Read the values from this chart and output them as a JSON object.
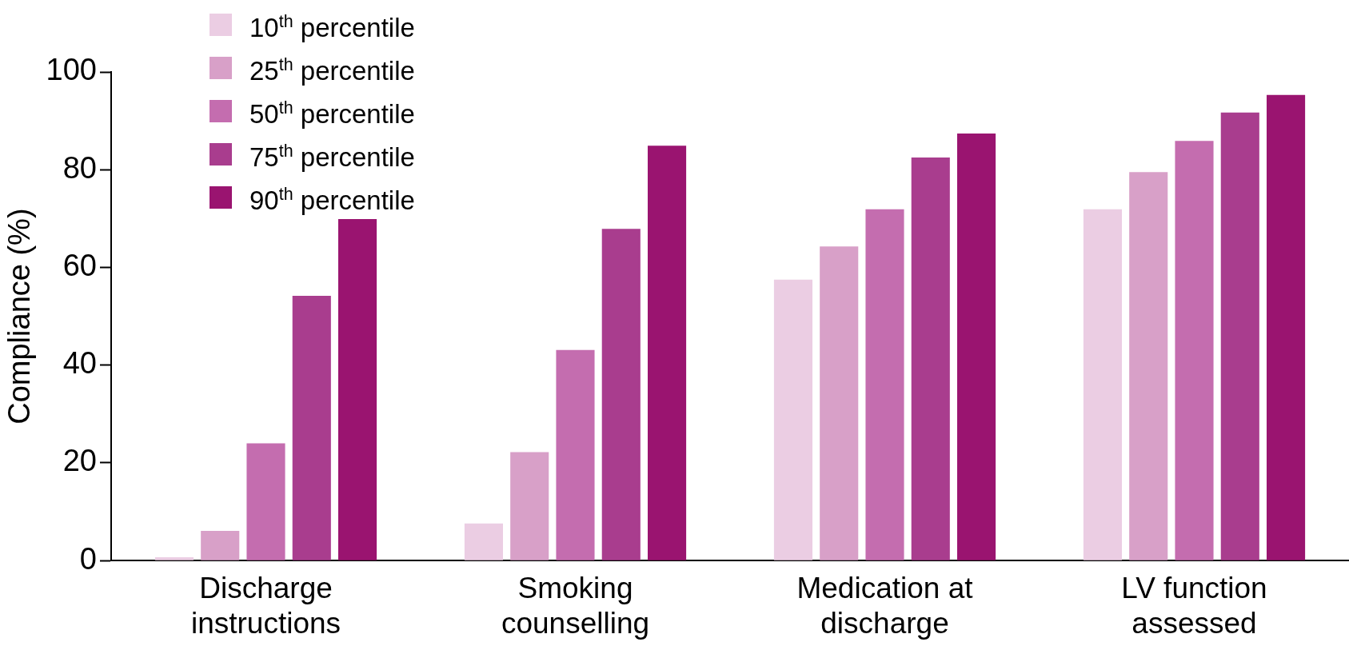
{
  "chart_data": {
    "type": "bar",
    "ylabel": "Compliance (%)",
    "categories": [
      "Discharge instructions",
      "Smoking counselling",
      "Medication at discharge",
      "LV function assessed"
    ],
    "series": [
      {
        "name": "10$^{th}$ percentile",
        "color": "#ebcde3",
        "values": [
          0.7,
          7.6,
          57.5,
          71.9
        ]
      },
      {
        "name": "25$^{th}$ percentile",
        "color": "#d8a0c8",
        "values": [
          6.1,
          22.2,
          64.3,
          79.5
        ]
      },
      {
        "name": "50$^{th}$ percentile",
        "color": "#c46daf",
        "values": [
          24,
          43.1,
          71.9,
          85.9
        ]
      },
      {
        "name": "75$^{th}$ percentile",
        "color": "#a93d8e",
        "values": [
          54.2,
          67.9,
          82.5,
          91.7
        ]
      },
      {
        "name": "90$^{th}$ percentile",
        "color": "#9a1470",
        "values": [
          69.9,
          84.9,
          87.4,
          95.3
        ]
      }
    ],
    "ylim": [
      0,
      100
    ],
    "yticks": [
      0,
      20,
      40,
      60,
      80,
      100
    ],
    "grid": false,
    "legend": "top left"
  }
}
